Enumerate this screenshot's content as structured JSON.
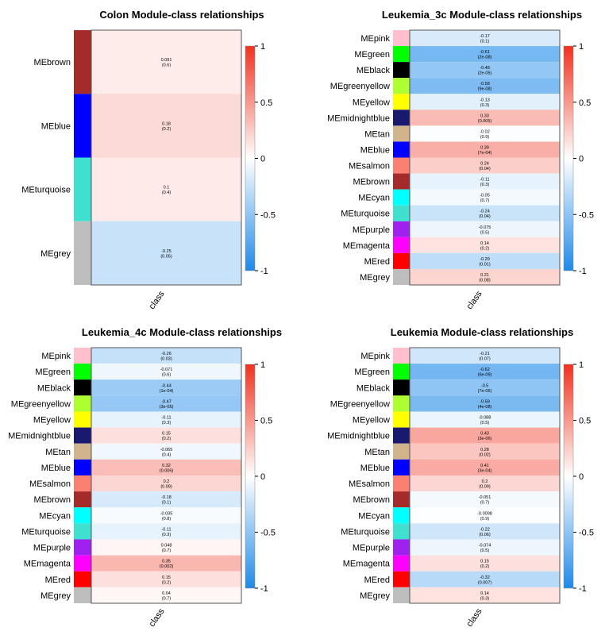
{
  "colors": {
    "neg": "#1e8ae8",
    "zero": "#ffffff",
    "pos": "#f0321e",
    "border": "#555555"
  },
  "chart_data": [
    {
      "type": "heatmap",
      "title": "Colon Module-class relationships",
      "xlabel": "class",
      "colorbar_ticks": [
        "1",
        "0.5",
        "0",
        "-0.5",
        "-1"
      ],
      "zlim": [
        -1,
        1
      ],
      "rows": [
        {
          "module": "MEbrown",
          "color": "#a52a2a",
          "value": 0.091,
          "text": "0.091",
          "p": "(0.6)"
        },
        {
          "module": "MEblue",
          "color": "#0000ff",
          "value": 0.18,
          "text": "0.18",
          "p": "(0.2)"
        },
        {
          "module": "MEturquoise",
          "color": "#40e0d0",
          "value": 0.1,
          "text": "0.1",
          "p": "(0.4)"
        },
        {
          "module": "MEgrey",
          "color": "#bebebe",
          "value": -0.25,
          "text": "-0.25",
          "p": "(0.05)"
        }
      ]
    },
    {
      "type": "heatmap",
      "title": "Leukemia_3c Module-class relationships",
      "xlabel": "class",
      "colorbar_ticks": [
        "1",
        "0.5",
        "0",
        "-0.5",
        "-1"
      ],
      "zlim": [
        -1,
        1
      ],
      "rows": [
        {
          "module": "MEpink",
          "color": "#ffc0cb",
          "value": -0.17,
          "text": "-0.17",
          "p": "(0.1)"
        },
        {
          "module": "MEgreen",
          "color": "#00ff00",
          "value": -0.61,
          "text": "-0.61",
          "p": "(2e-08)"
        },
        {
          "module": "MEblack",
          "color": "#000000",
          "value": -0.48,
          "text": "-0.48",
          "p": "(2e-05)"
        },
        {
          "module": "MEgreenyellow",
          "color": "#adff2f",
          "value": -0.58,
          "text": "-0.58",
          "p": "(9e-08)"
        },
        {
          "module": "MEyellow",
          "color": "#ffff00",
          "value": -0.13,
          "text": "-0.13",
          "p": "(0.3)"
        },
        {
          "module": "MEmidnightblue",
          "color": "#191970",
          "value": 0.33,
          "text": "0.33",
          "p": "(0.005)"
        },
        {
          "module": "MEtan",
          "color": "#d2b48c",
          "value": -0.02,
          "text": "-0.02",
          "p": "(0.9)"
        },
        {
          "module": "MEblue",
          "color": "#0000ff",
          "value": 0.39,
          "text": "0.39",
          "p": "(7e-04)"
        },
        {
          "module": "MEsalmon",
          "color": "#fa8072",
          "value": 0.24,
          "text": "0.24",
          "p": "(0.04)"
        },
        {
          "module": "MEbrown",
          "color": "#a52a2a",
          "value": -0.11,
          "text": "-0.11",
          "p": "(0.3)"
        },
        {
          "module": "MEcyan",
          "color": "#00ffff",
          "value": -0.05,
          "text": "-0.05",
          "p": "(0.7)"
        },
        {
          "module": "MEturquoise",
          "color": "#40e0d0",
          "value": -0.24,
          "text": "-0.24",
          "p": "(0.04)"
        },
        {
          "module": "MEpurple",
          "color": "#a020f0",
          "value": -0.075,
          "text": "-0.075",
          "p": "(0.5)"
        },
        {
          "module": "MEmagenta",
          "color": "#ff00ff",
          "value": 0.14,
          "text": "0.14",
          "p": "(0.2)"
        },
        {
          "module": "MEred",
          "color": "#ff0000",
          "value": -0.29,
          "text": "-0.29",
          "p": "(0.01)"
        },
        {
          "module": "MEgrey",
          "color": "#bebebe",
          "value": 0.21,
          "text": "0.21",
          "p": "(0.08)"
        }
      ]
    },
    {
      "type": "heatmap",
      "title": "Leukemia_4c Module-class relationships",
      "xlabel": "class",
      "colorbar_ticks": [
        "1",
        "0.5",
        "0",
        "-0.5",
        "-1"
      ],
      "zlim": [
        -1,
        1
      ],
      "rows": [
        {
          "module": "MEpink",
          "color": "#ffc0cb",
          "value": -0.26,
          "text": "-0.26",
          "p": "(0.03)"
        },
        {
          "module": "MEgreen",
          "color": "#00ff00",
          "value": -0.071,
          "text": "-0.071",
          "p": "(0.6)"
        },
        {
          "module": "MEblack",
          "color": "#000000",
          "value": -0.44,
          "text": "-0.44",
          "p": "(1e-04)"
        },
        {
          "module": "MEgreenyellow",
          "color": "#adff2f",
          "value": -0.47,
          "text": "-0.47",
          "p": "(3e-05)"
        },
        {
          "module": "MEyellow",
          "color": "#ffff00",
          "value": -0.11,
          "text": "-0.11",
          "p": "(0.3)"
        },
        {
          "module": "MEmidnightblue",
          "color": "#191970",
          "value": 0.15,
          "text": "0.15",
          "p": "(0.2)"
        },
        {
          "module": "MEtan",
          "color": "#d2b48c",
          "value": -0.065,
          "text": "-0.065",
          "p": "(0.4)"
        },
        {
          "module": "MEblue",
          "color": "#0000ff",
          "value": 0.32,
          "text": "0.32",
          "p": "(0.006)"
        },
        {
          "module": "MEsalmon",
          "color": "#fa8072",
          "value": 0.2,
          "text": "0.2",
          "p": "(0.09)"
        },
        {
          "module": "MEbrown",
          "color": "#a52a2a",
          "value": -0.18,
          "text": "-0.18",
          "p": "(0.1)"
        },
        {
          "module": "MEcyan",
          "color": "#00ffff",
          "value": -0.035,
          "text": "-0.035",
          "p": "(0.8)"
        },
        {
          "module": "MEturquoise",
          "color": "#40e0d0",
          "value": -0.11,
          "text": "-0.11",
          "p": "(0.3)"
        },
        {
          "module": "MEpurple",
          "color": "#a020f0",
          "value": 0.048,
          "text": "0.048",
          "p": "(0.7)"
        },
        {
          "module": "MEmagenta",
          "color": "#ff00ff",
          "value": 0.35,
          "text": "0.35",
          "p": "(0.002)"
        },
        {
          "module": "MEred",
          "color": "#ff0000",
          "value": 0.15,
          "text": "0.15",
          "p": "(0.2)"
        },
        {
          "module": "MEgrey",
          "color": "#bebebe",
          "value": 0.04,
          "text": "0.04",
          "p": "(0.7)"
        }
      ]
    },
    {
      "type": "heatmap",
      "title": "Leukemia Module-class relationships",
      "xlabel": "class",
      "colorbar_ticks": [
        "1",
        "0.5",
        "0",
        "-0.5",
        "-1"
      ],
      "zlim": [
        -1,
        1
      ],
      "rows": [
        {
          "module": "MEpink",
          "color": "#ffc0cb",
          "value": -0.21,
          "text": "-0.21",
          "p": "(0.07)"
        },
        {
          "module": "MEgreen",
          "color": "#00ff00",
          "value": -0.62,
          "text": "-0.62",
          "p": "(6e-09)"
        },
        {
          "module": "MEblack",
          "color": "#000000",
          "value": -0.5,
          "text": "-0.5",
          "p": "(7e-06)"
        },
        {
          "module": "MEgreenyellow",
          "color": "#adff2f",
          "value": -0.59,
          "text": "-0.59",
          "p": "(4e-08)"
        },
        {
          "module": "MEyellow",
          "color": "#ffff00",
          "value": -0.088,
          "text": "-0.088",
          "p": "(0.5)"
        },
        {
          "module": "MEmidnightblue",
          "color": "#191970",
          "value": 0.43,
          "text": "0.43",
          "p": "(3e-06)"
        },
        {
          "module": "MEtan",
          "color": "#d2b48c",
          "value": 0.28,
          "text": "0.28",
          "p": "(0.02)"
        },
        {
          "module": "MEblue",
          "color": "#0000ff",
          "value": 0.41,
          "text": "0.41",
          "p": "(3e-04)"
        },
        {
          "module": "MEsalmon",
          "color": "#fa8072",
          "value": 0.2,
          "text": "0.2",
          "p": "(0.09)"
        },
        {
          "module": "MEbrown",
          "color": "#a52a2a",
          "value": -0.051,
          "text": "-0.051",
          "p": "(0.7)"
        },
        {
          "module": "MEcyan",
          "color": "#00ffff",
          "value": -0.0098,
          "text": "-0.0098",
          "p": "(0.9)"
        },
        {
          "module": "MEturquoise",
          "color": "#40e0d0",
          "value": -0.22,
          "text": "-0.22",
          "p": "(0.06)"
        },
        {
          "module": "MEpurple",
          "color": "#a020f0",
          "value": -0.074,
          "text": "-0.074",
          "p": "(0.5)"
        },
        {
          "module": "MEmagenta",
          "color": "#ff00ff",
          "value": 0.15,
          "text": "0.15",
          "p": "(0.2)"
        },
        {
          "module": "MEred",
          "color": "#ff0000",
          "value": -0.32,
          "text": "-0.32",
          "p": "(0.007)"
        },
        {
          "module": "MEgrey",
          "color": "#bebebe",
          "value": 0.14,
          "text": "0.14",
          "p": "(0.3)"
        }
      ]
    }
  ]
}
